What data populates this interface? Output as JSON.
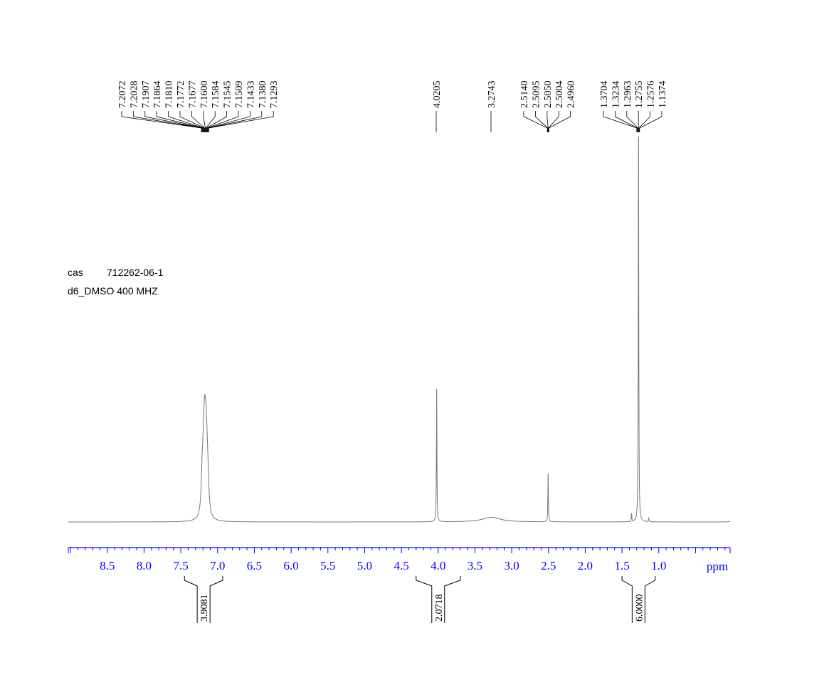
{
  "chart_data": {
    "type": "line",
    "xlabel": "ppm",
    "x_reversed": true,
    "xlim": [
      9.03,
      0.03
    ],
    "x_ticks": [
      "8.5",
      "8.0",
      "7.5",
      "7.0",
      "6.5",
      "6.0",
      "5.5",
      "5.0",
      "4.5",
      "4.0",
      "3.5",
      "3.0",
      "2.5",
      "2.0",
      "1.5",
      "1.0"
    ],
    "grid": false,
    "info": {
      "line1_key": "cas",
      "line1_value": "712262-06-1",
      "line2": "d6_DMSO  400 MHZ"
    },
    "peak_groups": [
      {
        "labels": [
          "7.2072",
          "7.2028",
          "7.1907",
          "7.1864",
          "7.1810",
          "7.1772",
          "7.1677",
          "7.1600",
          "7.1584",
          "7.1545",
          "7.1509",
          "7.1433",
          "7.1380",
          "7.1293"
        ],
        "shift": 7.17
      },
      {
        "labels": [
          "4.0205"
        ],
        "shift": 4.0205
      },
      {
        "labels": [
          "3.2743"
        ],
        "shift": 3.2743
      },
      {
        "labels": [
          "2.5140",
          "2.5095",
          "2.5050",
          "2.5004",
          "2.4960"
        ],
        "shift": 2.505
      },
      {
        "labels": [
          "1.3704",
          "1.3234",
          "1.2963",
          "1.2755",
          "1.2576",
          "1.1374"
        ],
        "shift": 1.28
      }
    ],
    "peaks": [
      {
        "ppm": 7.21,
        "intensity": 0.09,
        "width": 0.015
      },
      {
        "ppm": 7.19,
        "intensity": 0.13,
        "width": 0.015
      },
      {
        "ppm": 7.175,
        "intensity": 0.155,
        "width": 0.015
      },
      {
        "ppm": 7.16,
        "intensity": 0.14,
        "width": 0.015
      },
      {
        "ppm": 7.145,
        "intensity": 0.1,
        "width": 0.015
      },
      {
        "ppm": 7.13,
        "intensity": 0.06,
        "width": 0.015
      },
      {
        "ppm": 4.0205,
        "intensity": 0.345,
        "width": 0.004
      },
      {
        "ppm": 3.2743,
        "intensity": 0.012,
        "width": 0.15
      },
      {
        "ppm": 2.505,
        "intensity": 0.125,
        "width": 0.004
      },
      {
        "ppm": 1.2755,
        "intensity": 1.0,
        "width": 0.004
      },
      {
        "ppm": 1.3704,
        "intensity": 0.02,
        "width": 0.004
      },
      {
        "ppm": 1.1374,
        "intensity": 0.01,
        "width": 0.004
      },
      {
        "ppm": 0.0,
        "intensity": 0.02,
        "width": 0.01
      }
    ],
    "integrals": [
      {
        "from": 7.45,
        "to": 6.93,
        "value": "3.9081"
      },
      {
        "from": 4.3,
        "to": 3.7,
        "value": "2.0718"
      },
      {
        "from": 1.5,
        "to": 1.05,
        "value": "6.0000"
      }
    ]
  }
}
